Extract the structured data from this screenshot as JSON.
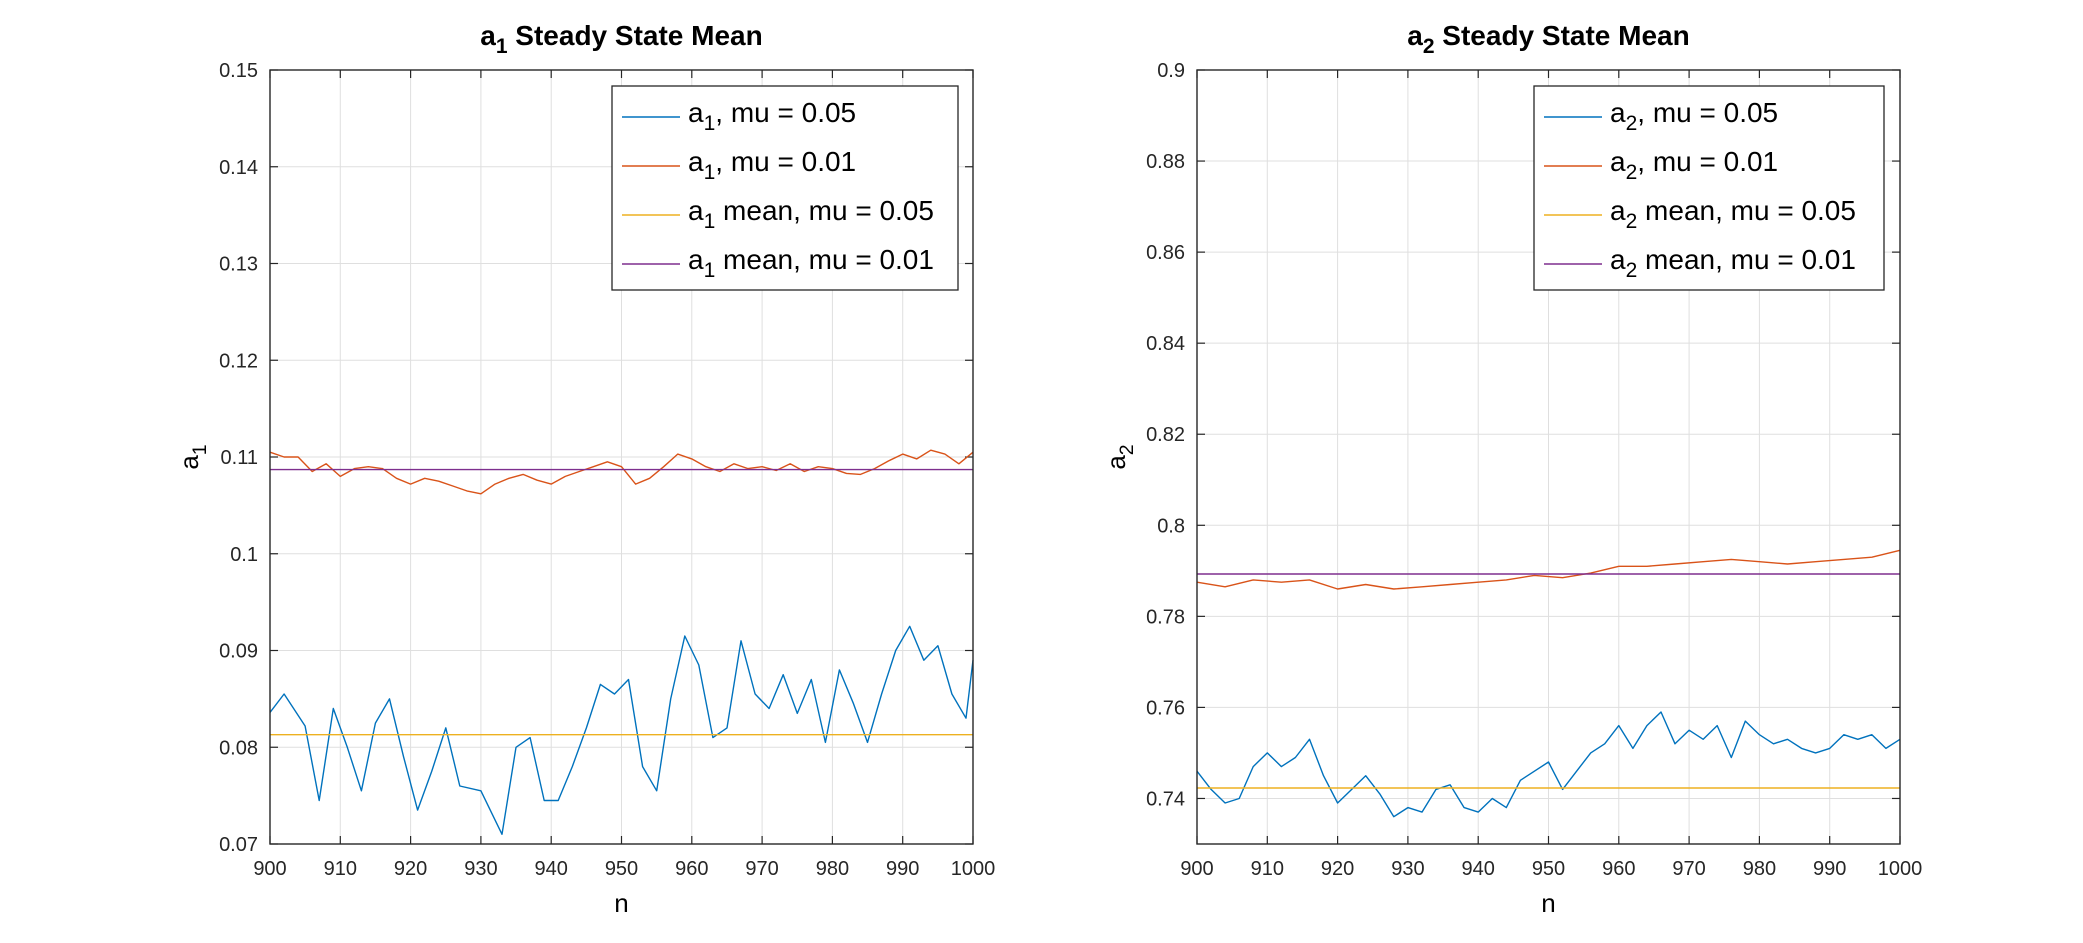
{
  "chart_data": [
    {
      "type": "line",
      "title_main": "a",
      "title_sub": "1",
      "title_rest": " Steady State Mean",
      "xlabel": "n",
      "ylabel_main": "a",
      "ylabel_sub": "1",
      "xlim": [
        900,
        1000
      ],
      "ylim": [
        0.07,
        0.15
      ],
      "xticks": [
        "900",
        "910",
        "920",
        "930",
        "940",
        "950",
        "960",
        "970",
        "980",
        "990",
        "1000"
      ],
      "yticks": [
        "0.07",
        "0.08",
        "0.09",
        "0.1",
        "0.11",
        "0.12",
        "0.13",
        "0.14",
        "0.15"
      ],
      "grid": true,
      "legend_position": "top-right",
      "series": [
        {
          "name_main": "a",
          "name_sub": "1",
          "name_rest": ", mu = 0.05",
          "color": "#0072BD",
          "x": [
            900,
            902,
            905,
            907,
            909,
            911,
            913,
            915,
            917,
            919,
            921,
            923,
            925,
            927,
            930,
            933,
            935,
            937,
            939,
            941,
            943,
            945,
            947,
            949,
            951,
            953,
            955,
            957,
            959,
            961,
            963,
            965,
            967,
            969,
            971,
            973,
            975,
            977,
            979,
            981,
            983,
            985,
            987,
            989,
            991,
            993,
            995,
            997,
            999,
            1000
          ],
          "y": [
            0.0836,
            0.0855,
            0.0822,
            0.0745,
            0.084,
            0.08,
            0.0755,
            0.0825,
            0.085,
            0.079,
            0.0735,
            0.0775,
            0.082,
            0.076,
            0.0755,
            0.071,
            0.08,
            0.081,
            0.0745,
            0.0745,
            0.078,
            0.082,
            0.0865,
            0.0855,
            0.087,
            0.078,
            0.0755,
            0.085,
            0.0915,
            0.0885,
            0.081,
            0.082,
            0.091,
            0.0855,
            0.084,
            0.0875,
            0.0835,
            0.087,
            0.0805,
            0.088,
            0.0845,
            0.0805,
            0.0855,
            0.09,
            0.0925,
            0.089,
            0.0905,
            0.0855,
            0.083,
            0.089
          ]
        },
        {
          "name_main": "a",
          "name_sub": "1",
          "name_rest": ", mu = 0.01",
          "color": "#D95319",
          "x": [
            900,
            902,
            904,
            906,
            908,
            910,
            912,
            914,
            916,
            918,
            920,
            922,
            924,
            926,
            928,
            930,
            932,
            934,
            936,
            938,
            940,
            942,
            944,
            946,
            948,
            950,
            952,
            954,
            956,
            958,
            960,
            962,
            964,
            966,
            968,
            970,
            972,
            974,
            976,
            978,
            980,
            982,
            984,
            986,
            988,
            990,
            992,
            994,
            996,
            998,
            1000
          ],
          "y": [
            0.1105,
            0.11,
            0.11,
            0.1085,
            0.1093,
            0.108,
            0.1088,
            0.109,
            0.1088,
            0.1078,
            0.1072,
            0.1078,
            0.1075,
            0.107,
            0.1065,
            0.1062,
            0.1072,
            0.1078,
            0.1082,
            0.1076,
            0.1072,
            0.108,
            0.1085,
            0.109,
            0.1095,
            0.109,
            0.1072,
            0.1078,
            0.109,
            0.1103,
            0.1098,
            0.109,
            0.1085,
            0.1093,
            0.1088,
            0.109,
            0.1086,
            0.1093,
            0.1085,
            0.109,
            0.1088,
            0.1083,
            0.1082,
            0.1088,
            0.1096,
            0.1103,
            0.1098,
            0.1107,
            0.1103,
            0.1093,
            0.1105
          ]
        },
        {
          "name_main": "a",
          "name_sub": "1",
          "name_rest": " mean, mu = 0.05",
          "color": "#EDB120",
          "x": [
            900,
            1000
          ],
          "y": [
            0.0813,
            0.0813
          ]
        },
        {
          "name_main": "a",
          "name_sub": "1",
          "name_rest": " mean, mu = 0.01",
          "color": "#7E2F8E",
          "x": [
            900,
            1000
          ],
          "y": [
            0.1087,
            0.1087
          ]
        }
      ]
    },
    {
      "type": "line",
      "title_main": "a",
      "title_sub": "2",
      "title_rest": " Steady State Mean",
      "xlabel": "n",
      "ylabel_main": "a",
      "ylabel_sub": "2",
      "xlim": [
        900,
        1000
      ],
      "ylim": [
        0.73,
        0.9
      ],
      "xticks": [
        "900",
        "910",
        "920",
        "930",
        "940",
        "950",
        "960",
        "970",
        "980",
        "990",
        "1000"
      ],
      "yticks": [
        "0.74",
        "0.76",
        "0.78",
        "0.8",
        "0.82",
        "0.84",
        "0.86",
        "0.88",
        "0.9"
      ],
      "grid": true,
      "legend_position": "top-right",
      "series": [
        {
          "name_main": "a",
          "name_sub": "2",
          "name_rest": ", mu = 0.05",
          "color": "#0072BD",
          "x": [
            900,
            902,
            904,
            906,
            908,
            910,
            912,
            914,
            916,
            918,
            920,
            922,
            924,
            926,
            928,
            930,
            932,
            934,
            936,
            938,
            940,
            942,
            944,
            946,
            948,
            950,
            952,
            954,
            956,
            958,
            960,
            962,
            964,
            966,
            968,
            970,
            972,
            974,
            976,
            978,
            980,
            982,
            984,
            986,
            988,
            990,
            992,
            994,
            996,
            998,
            1000
          ],
          "y": [
            0.746,
            0.742,
            0.739,
            0.74,
            0.747,
            0.75,
            0.747,
            0.749,
            0.753,
            0.745,
            0.739,
            0.742,
            0.745,
            0.741,
            0.736,
            0.738,
            0.737,
            0.742,
            0.743,
            0.738,
            0.737,
            0.74,
            0.738,
            0.744,
            0.746,
            0.748,
            0.742,
            0.746,
            0.75,
            0.752,
            0.756,
            0.751,
            0.756,
            0.759,
            0.752,
            0.755,
            0.753,
            0.756,
            0.749,
            0.757,
            0.754,
            0.752,
            0.753,
            0.751,
            0.75,
            0.751,
            0.754,
            0.753,
            0.754,
            0.751,
            0.753
          ]
        },
        {
          "name_main": "a",
          "name_sub": "2",
          "name_rest": ", mu = 0.01",
          "color": "#D95319",
          "x": [
            900,
            904,
            908,
            912,
            916,
            920,
            924,
            928,
            932,
            936,
            940,
            944,
            948,
            952,
            956,
            960,
            964,
            968,
            972,
            976,
            980,
            984,
            988,
            992,
            996,
            1000
          ],
          "y": [
            0.7875,
            0.7865,
            0.788,
            0.7875,
            0.788,
            0.786,
            0.787,
            0.786,
            0.7865,
            0.787,
            0.7875,
            0.788,
            0.789,
            0.7885,
            0.7895,
            0.791,
            0.791,
            0.7915,
            0.792,
            0.7925,
            0.792,
            0.7915,
            0.792,
            0.7925,
            0.793,
            0.7945
          ]
        },
        {
          "name_main": "a",
          "name_sub": "2",
          "name_rest": " mean, mu = 0.05",
          "color": "#EDB120",
          "x": [
            900,
            1000
          ],
          "y": [
            0.7423,
            0.7423
          ]
        },
        {
          "name_main": "a",
          "name_sub": "2",
          "name_rest": " mean, mu = 0.01",
          "color": "#7E2F8E",
          "x": [
            900,
            1000
          ],
          "y": [
            0.7893,
            0.7893
          ]
        }
      ]
    }
  ]
}
